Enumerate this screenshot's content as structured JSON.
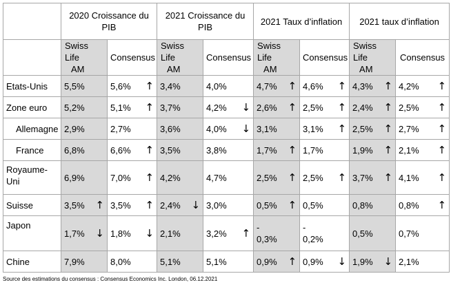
{
  "headers": {
    "groups": [
      "2020 Croissance du PIB",
      "2021 Croissance du PIB",
      "2021 Taux d’inflation",
      "2021 taux d’inflation"
    ],
    "sub": {
      "swiss_line1": "Swiss Life",
      "swiss_line2": "AM",
      "consensus": "Consensus"
    }
  },
  "rows": [
    {
      "country": "Etats-Unis",
      "indent": false,
      "tall": false,
      "cells": [
        {
          "v": "5,5%",
          "a": ""
        },
        {
          "v": "5,6%",
          "a": "↑"
        },
        {
          "v": "3,4%",
          "a": ""
        },
        {
          "v": "4,0%",
          "a": ""
        },
        {
          "v": "4,7%",
          "a": "↑"
        },
        {
          "v": "4,6%",
          "a": "↑"
        },
        {
          "v": "4,3%",
          "a": "↑"
        },
        {
          "v": "4,2%",
          "a": "↑"
        }
      ]
    },
    {
      "country": "Zone euro",
      "indent": false,
      "tall": false,
      "cells": [
        {
          "v": "5,2%",
          "a": ""
        },
        {
          "v": "5,1%",
          "a": "↑"
        },
        {
          "v": "3,7%",
          "a": ""
        },
        {
          "v": "4,2%",
          "a": "↓"
        },
        {
          "v": "2,6%",
          "a": "↑"
        },
        {
          "v": "2,5%",
          "a": "↑"
        },
        {
          "v": "2,4%",
          "a": "↑"
        },
        {
          "v": "2,5%",
          "a": "↑"
        }
      ]
    },
    {
      "country": "Allemagne",
      "indent": true,
      "tall": false,
      "cells": [
        {
          "v": "2,9%",
          "a": ""
        },
        {
          "v": "2,7%",
          "a": ""
        },
        {
          "v": "3,6%",
          "a": ""
        },
        {
          "v": "4,0%",
          "a": "↓"
        },
        {
          "v": "3,1%",
          "a": ""
        },
        {
          "v": "3,1%",
          "a": "↑"
        },
        {
          "v": "2,5%",
          "a": "↑"
        },
        {
          "v": "2,7%",
          "a": "↑"
        }
      ]
    },
    {
      "country": "France",
      "indent": true,
      "tall": false,
      "cells": [
        {
          "v": "6,8%",
          "a": ""
        },
        {
          "v": "6,6%",
          "a": "↑"
        },
        {
          "v": "3,5%",
          "a": ""
        },
        {
          "v": "3,8%",
          "a": ""
        },
        {
          "v": "1,7%",
          "a": "↑"
        },
        {
          "v": "1,7%",
          "a": ""
        },
        {
          "v": "1,9%",
          "a": "↑"
        },
        {
          "v": "2,1%",
          "a": "↑"
        }
      ]
    },
    {
      "country": "Royaume-Uni",
      "country_l1": "Royaume-",
      "country_l2": "Uni",
      "indent": false,
      "tall": true,
      "cells": [
        {
          "v": "6,9%",
          "a": ""
        },
        {
          "v": "7,0%",
          "a": "↑"
        },
        {
          "v": "4,2%",
          "a": ""
        },
        {
          "v": "4,7%",
          "a": ""
        },
        {
          "v": "2,5%",
          "a": "↑"
        },
        {
          "v": "2,5%",
          "a": "↑"
        },
        {
          "v": "3,7%",
          "a": "↑"
        },
        {
          "v": "4,1%",
          "a": "↑"
        }
      ]
    },
    {
      "country": "Suisse",
      "indent": false,
      "tall": false,
      "cells": [
        {
          "v": "3,5%",
          "a": "↑"
        },
        {
          "v": "3,5%",
          "a": "↑"
        },
        {
          "v": "2,4%",
          "a": "↓"
        },
        {
          "v": "3,0%",
          "a": ""
        },
        {
          "v": "0,5%",
          "a": "↑"
        },
        {
          "v": "0,5%",
          "a": ""
        },
        {
          "v": "0,8%",
          "a": ""
        },
        {
          "v": "0,8%",
          "a": "↑"
        }
      ]
    },
    {
      "country": "Japon",
      "indent": false,
      "tall": true,
      "cells": [
        {
          "v": "1,7%",
          "a": "↓"
        },
        {
          "v": "1,8%",
          "a": "↓"
        },
        {
          "v": "2,1%",
          "a": ""
        },
        {
          "v": "3,2%",
          "a": "↑"
        },
        {
          "v": "-0,3%",
          "v1": "-",
          "v2": "0,3%",
          "a": ""
        },
        {
          "v": "-0,2%",
          "v1": "-",
          "v2": "0,2%",
          "a": ""
        },
        {
          "v": "0,5%",
          "a": ""
        },
        {
          "v": "0,7%",
          "a": ""
        }
      ]
    },
    {
      "country": "Chine",
      "indent": false,
      "tall": false,
      "cells": [
        {
          "v": "7,9%",
          "a": ""
        },
        {
          "v": "8,0%",
          "a": ""
        },
        {
          "v": "5,1%",
          "a": ""
        },
        {
          "v": "5,1%",
          "a": ""
        },
        {
          "v": "0,9%",
          "a": "↑"
        },
        {
          "v": "0,9%",
          "a": "↓"
        },
        {
          "v": "1,9%",
          "a": "↓"
        },
        {
          "v": "2,1%",
          "a": ""
        }
      ]
    }
  ],
  "footer": "Source des estimations du consensus : Consensus Economics Inc. London, 06.12.2021"
}
